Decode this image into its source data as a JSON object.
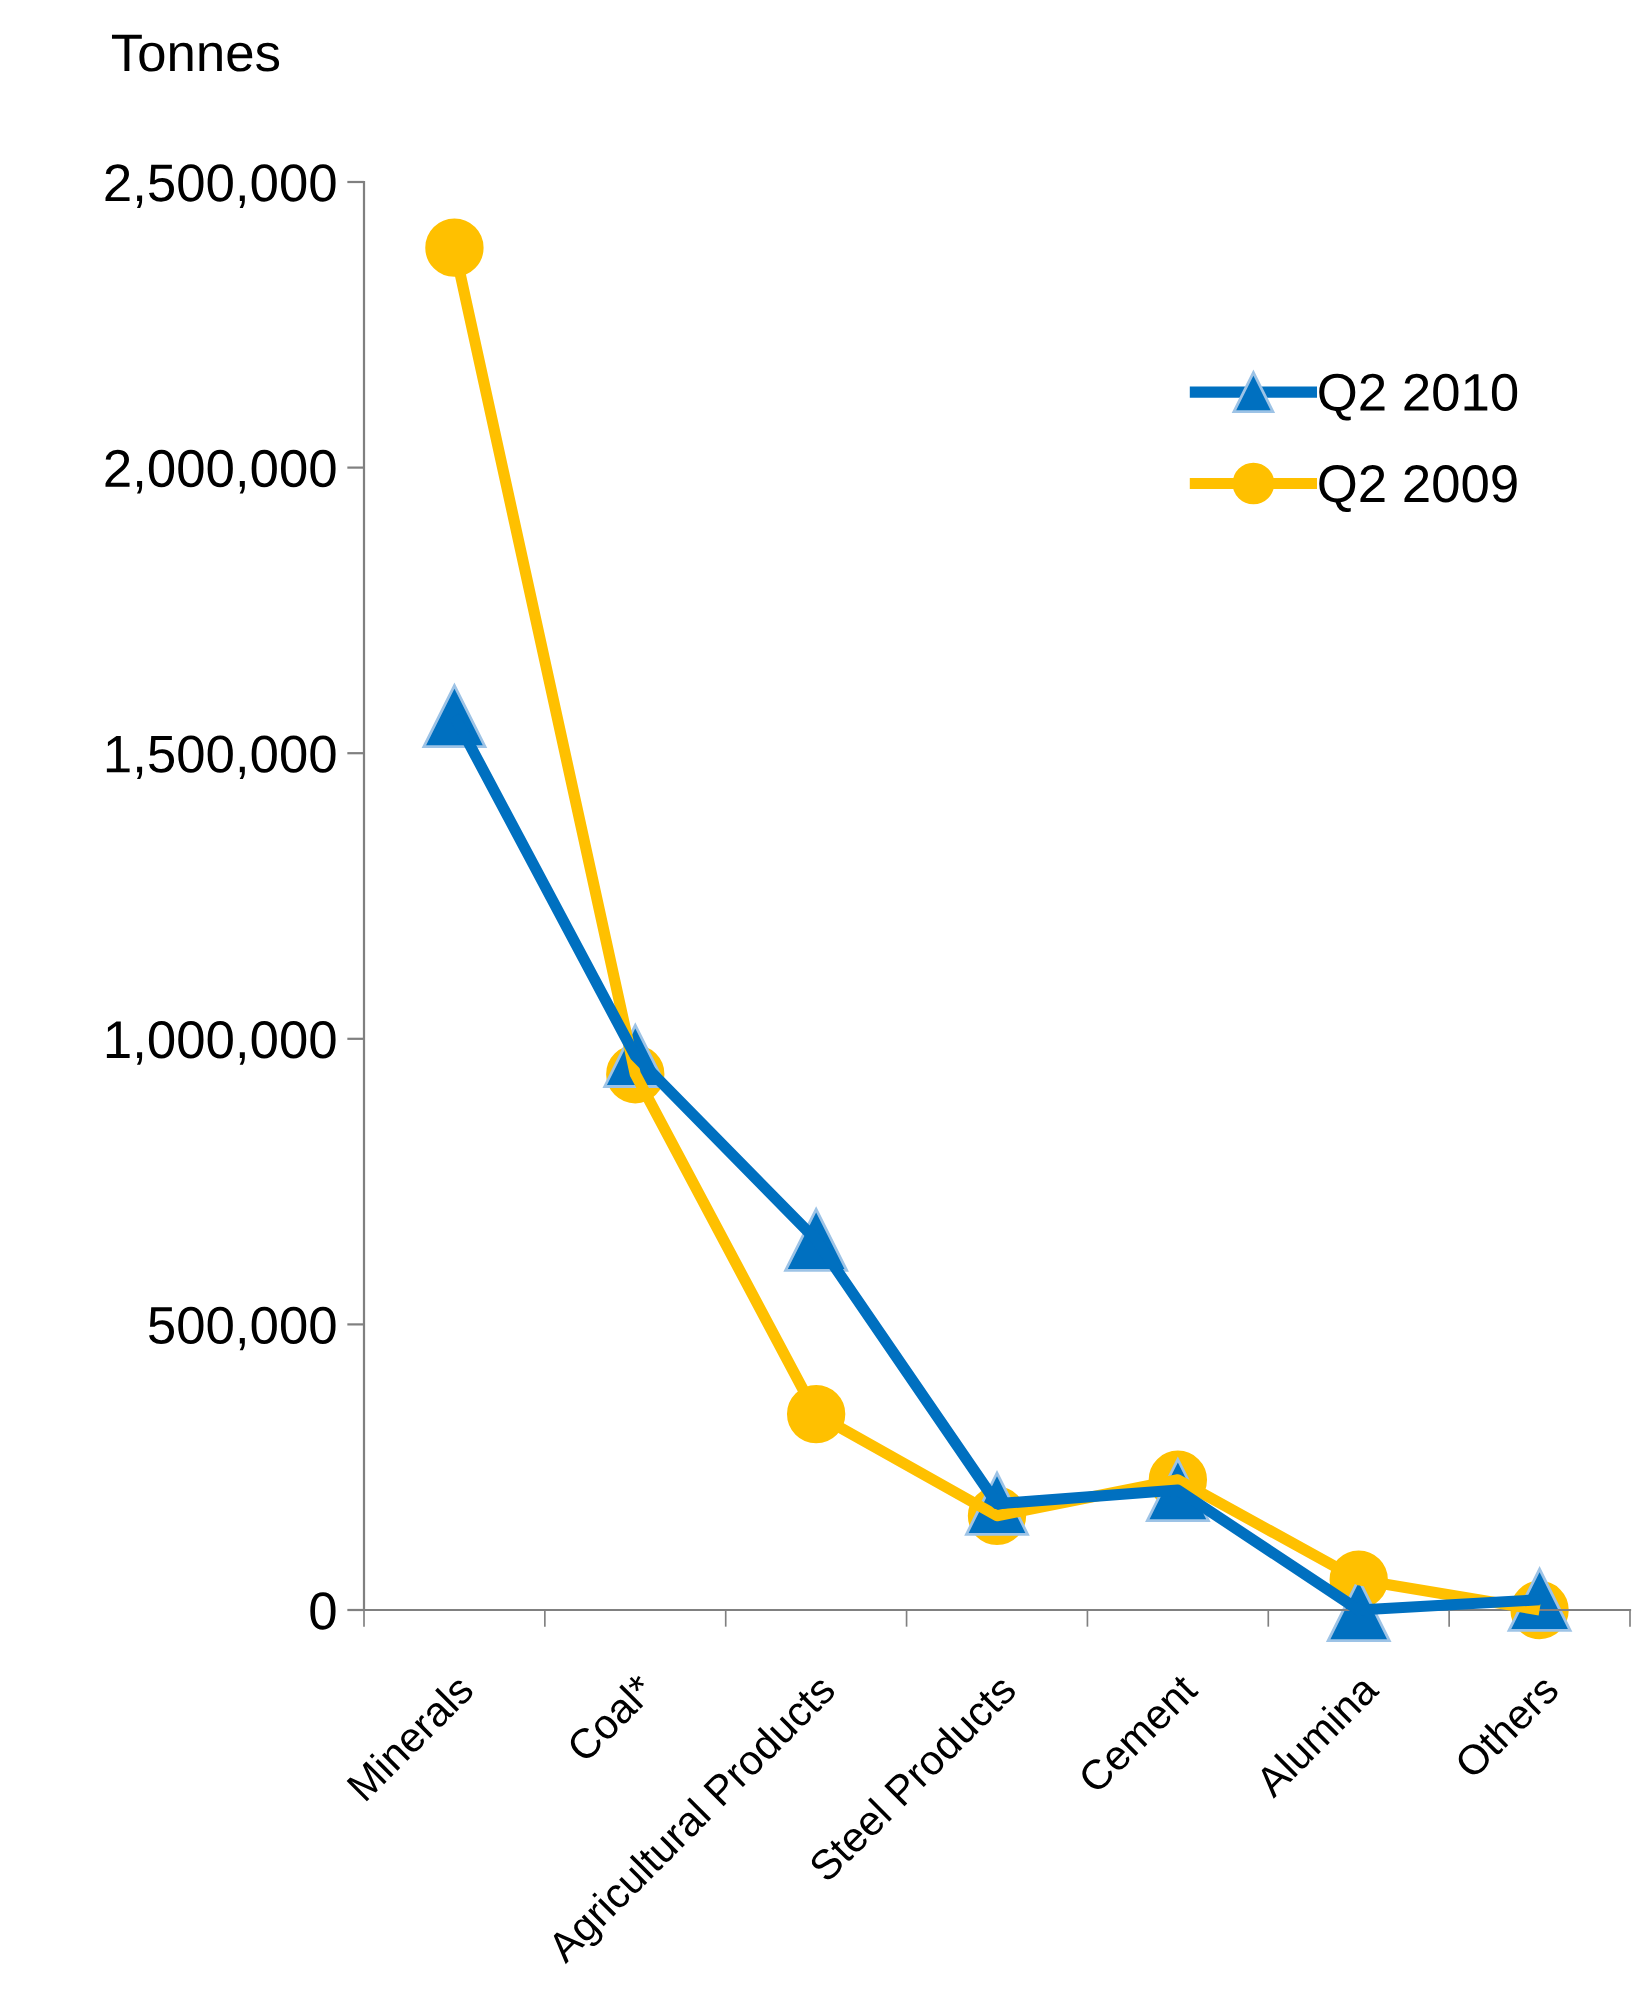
{
  "chart_data": {
    "type": "line",
    "ylabel": "Tonnes",
    "categories": [
      "Minerals",
      "Coal*",
      "Agricultural Products",
      "Steel Products",
      "Cement",
      "Alumina",
      "Others"
    ],
    "series": [
      {
        "name": "Q2 2010",
        "color": "#0070c0",
        "marker": "triangle",
        "values": [
          1565000,
          970000,
          648000,
          186000,
          210000,
          0,
          18000
        ]
      },
      {
        "name": "Q2 2009",
        "color": "#ffc000",
        "marker": "circle",
        "values": [
          2385000,
          938000,
          343000,
          165000,
          228000,
          53000,
          0
        ]
      }
    ],
    "ylim": [
      0,
      2500000
    ],
    "yticks": [
      0,
      {
        "value": 500000,
        "label": "500,000"
      },
      {
        "value": 1000000,
        "label": "1,000,000"
      },
      {
        "value": 1500000,
        "label": "1,500,000"
      },
      {
        "value": 2000000,
        "label": "2,000,000"
      },
      {
        "value": 2500000,
        "label": "2,500,000"
      }
    ],
    "grid": false,
    "legend": "top right",
    "line_style": "solid"
  }
}
